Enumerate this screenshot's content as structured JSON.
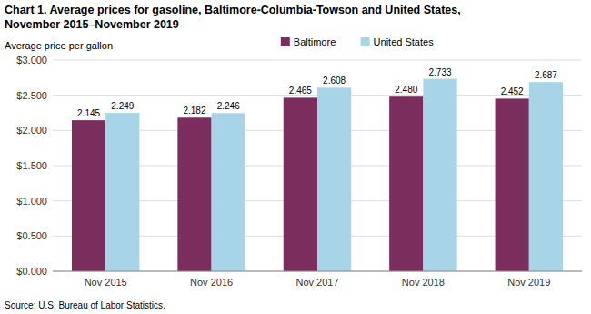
{
  "chart_data": {
    "type": "bar",
    "title": "Chart 1. Average prices for gasoline, Baltimore-Columbia-Towson and United States,\nNovember 2015–November 2019",
    "ylabel": "Average price per gallon",
    "annotations": [
      "Source: U.S. Bureau of Labor Statistics."
    ],
    "categories": [
      "Nov 2015",
      "Nov 2016",
      "Nov 2017",
      "Nov 2018",
      "Nov 2019"
    ],
    "series": [
      {
        "name": "Baltimore",
        "color": "#7B2D5E",
        "values": [
          2.145,
          2.182,
          2.465,
          2.48,
          2.452
        ],
        "value_labels": [
          "2.145",
          "2.182",
          "2.465",
          "2.480",
          "2.452"
        ]
      },
      {
        "name": "United States",
        "color": "#A8D4E8",
        "values": [
          2.249,
          2.246,
          2.608,
          2.733,
          2.687
        ],
        "value_labels": [
          "2.249",
          "2.246",
          "2.608",
          "2.733",
          "2.687"
        ]
      }
    ],
    "ylim": [
      0,
      3.0
    ],
    "yticks": [
      {
        "value": 0.0,
        "label": "$0.000"
      },
      {
        "value": 0.5,
        "label": "$0.500"
      },
      {
        "value": 1.0,
        "label": "$1.000"
      },
      {
        "value": 1.5,
        "label": "$1.500"
      },
      {
        "value": 2.0,
        "label": "$2.000"
      },
      {
        "value": 2.5,
        "label": "$2.500"
      },
      {
        "value": 3.0,
        "label": "$3.000"
      }
    ],
    "grid": true,
    "legend": "top",
    "data_labels": true
  }
}
